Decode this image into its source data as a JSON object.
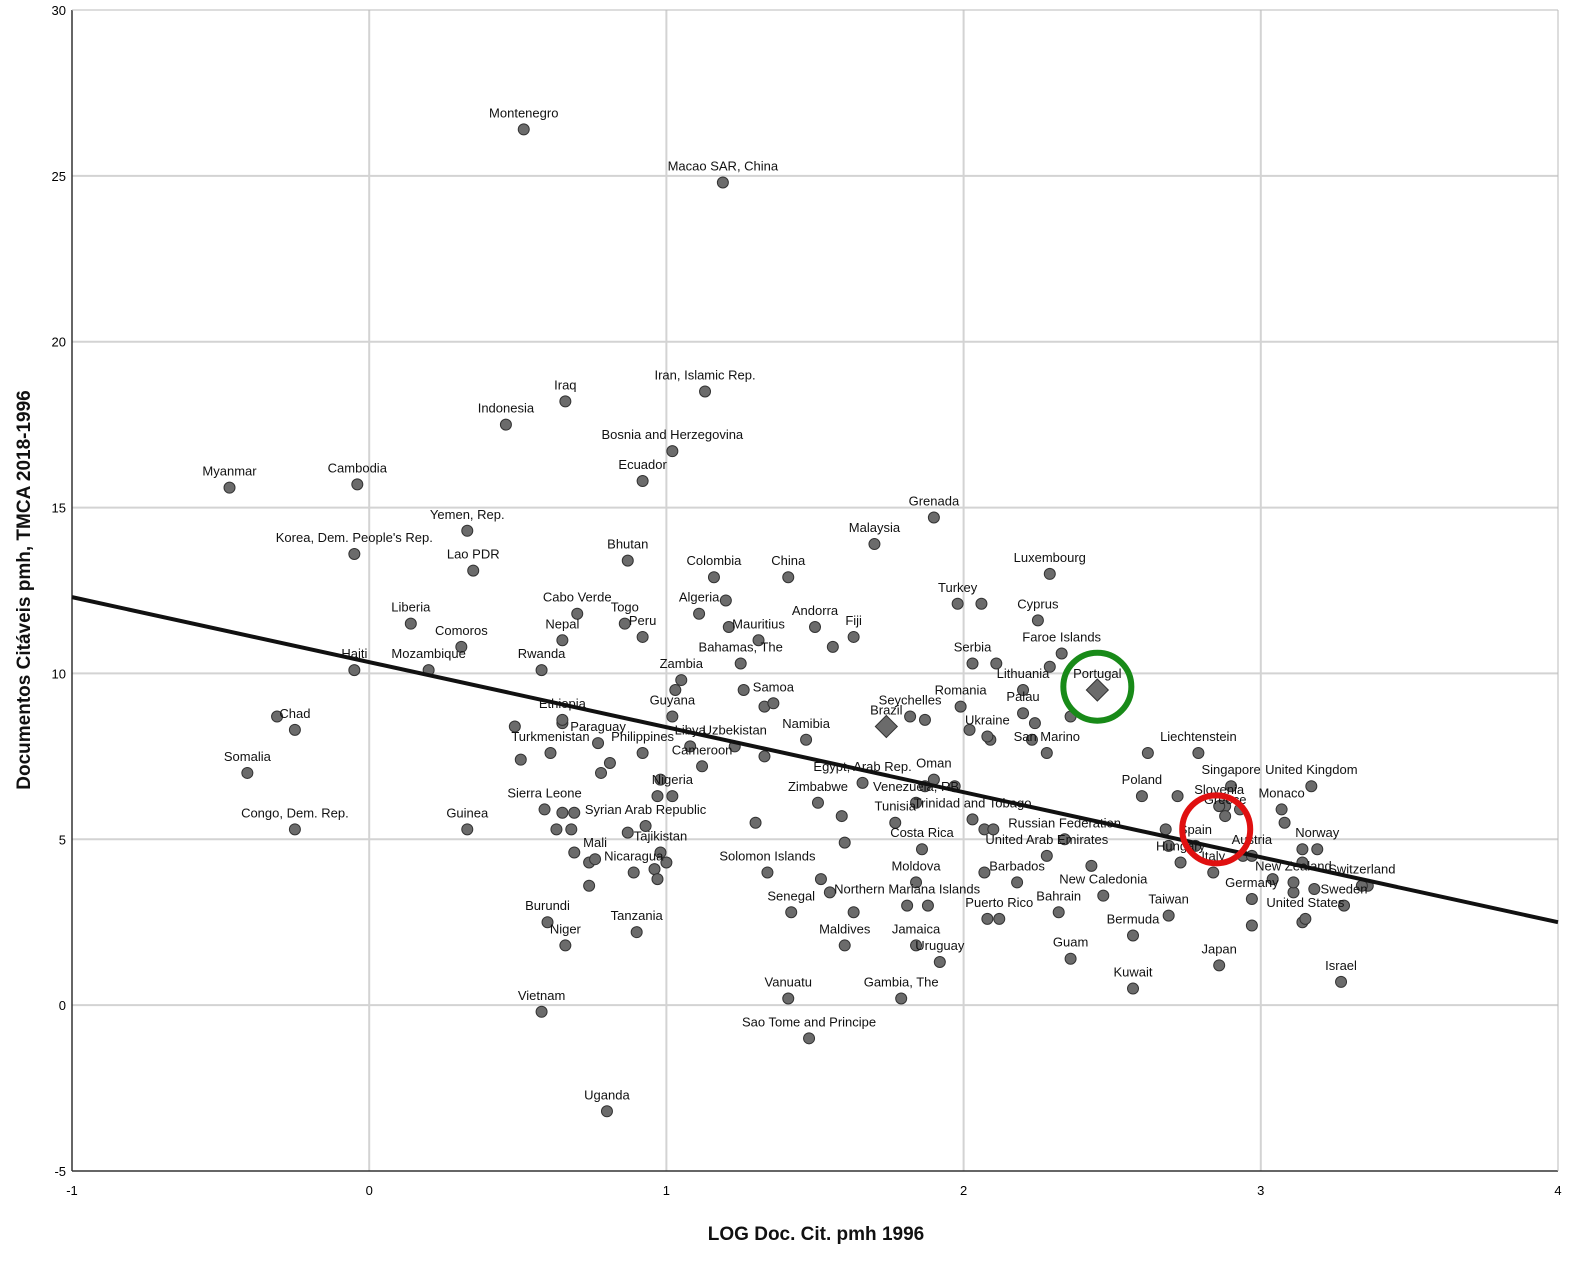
{
  "chart_data": {
    "type": "scatter",
    "xlabel": "LOG Doc. Cit. pmh 1996",
    "ylabel": "Documentos Citáveis pmh, TMCA 2018-1996",
    "xlim": [
      -1,
      4
    ],
    "ylim": [
      -5,
      30
    ],
    "xticks": [
      "-1",
      "0",
      "1",
      "2",
      "3",
      "4"
    ],
    "yticks": [
      "-5",
      "0",
      "5",
      "10",
      "15",
      "20",
      "25",
      "30"
    ],
    "grid": true,
    "colors": {
      "point": "#6b6b6b",
      "point_edge": "#333333",
      "fit_line": "#111111",
      "grid": "#d3d3d3",
      "highlight_green": "#188a18",
      "highlight_red": "#e01010"
    },
    "fit_line": {
      "x": [
        -1,
        4
      ],
      "y": [
        12.3,
        2.5
      ]
    },
    "highlights": [
      {
        "x": 2.45,
        "y": 9.6,
        "color": "green",
        "shape": "circle"
      },
      {
        "x": 2.85,
        "y": 5.3,
        "color": "red",
        "shape": "circle"
      }
    ],
    "labeled_points": [
      {
        "label": "Montenegro",
        "x": 0.52,
        "y": 26.4
      },
      {
        "label": "Macao SAR, China",
        "x": 1.19,
        "y": 24.8
      },
      {
        "label": "Iraq",
        "x": 0.66,
        "y": 18.2
      },
      {
        "label": "Indonesia",
        "x": 0.46,
        "y": 17.5
      },
      {
        "label": "Iran, Islamic Rep.",
        "x": 1.13,
        "y": 18.5
      },
      {
        "label": "Bosnia and Herzegovina",
        "x": 1.02,
        "y": 16.7
      },
      {
        "label": "Ecuador",
        "x": 0.92,
        "y": 15.8
      },
      {
        "label": "Myanmar",
        "x": -0.47,
        "y": 15.6
      },
      {
        "label": "Cambodia",
        "x": -0.04,
        "y": 15.7
      },
      {
        "label": "Yemen, Rep.",
        "x": 0.33,
        "y": 14.3
      },
      {
        "label": "Korea, Dem. People's Rep.",
        "x": -0.05,
        "y": 13.6
      },
      {
        "label": "Lao PDR",
        "x": 0.35,
        "y": 13.1
      },
      {
        "label": "Bhutan",
        "x": 0.87,
        "y": 13.4
      },
      {
        "label": "Grenada",
        "x": 1.9,
        "y": 14.7
      },
      {
        "label": "Malaysia",
        "x": 1.7,
        "y": 13.9
      },
      {
        "label": "Luxembourg",
        "x": 2.29,
        "y": 13.0
      },
      {
        "label": "China",
        "x": 1.41,
        "y": 12.9
      },
      {
        "label": "Colombia",
        "x": 1.16,
        "y": 12.9
      },
      {
        "label": "Turkey",
        "x": 1.98,
        "y": 12.1
      },
      {
        "label": "Liberia",
        "x": 0.14,
        "y": 11.5
      },
      {
        "label": "Cabo Verde",
        "x": 0.7,
        "y": 11.8
      },
      {
        "label": "Algeria",
        "x": 1.11,
        "y": 11.8
      },
      {
        "label": "Andorra",
        "x": 1.5,
        "y": 11.4
      },
      {
        "label": "Cyprus",
        "x": 2.25,
        "y": 11.6
      },
      {
        "label": "Togo",
        "x": 0.86,
        "y": 11.5
      },
      {
        "label": "Peru",
        "x": 0.92,
        "y": 11.1
      },
      {
        "label": "Nepal",
        "x": 0.65,
        "y": 11.0
      },
      {
        "label": "Comoros",
        "x": 0.31,
        "y": 10.8
      },
      {
        "label": "Mauritius",
        "x": 1.31,
        "y": 11.0
      },
      {
        "label": "Fiji",
        "x": 1.63,
        "y": 11.1
      },
      {
        "label": "Haiti",
        "x": -0.05,
        "y": 10.1
      },
      {
        "label": "Mozambique",
        "x": 0.2,
        "y": 10.1
      },
      {
        "label": "Rwanda",
        "x": 0.58,
        "y": 10.1
      },
      {
        "label": "Bahamas, The",
        "x": 1.25,
        "y": 10.3
      },
      {
        "label": "Serbia",
        "x": 2.03,
        "y": 10.3
      },
      {
        "label": "Faroe Islands",
        "x": 2.33,
        "y": 10.6
      },
      {
        "label": "Portugal",
        "x": 2.45,
        "y": 9.5
      },
      {
        "label": "Zambia",
        "x": 1.05,
        "y": 9.8
      },
      {
        "label": "Lithuania",
        "x": 2.2,
        "y": 9.5
      },
      {
        "label": "Samoa",
        "x": 1.36,
        "y": 9.1
      },
      {
        "label": "Romania",
        "x": 1.99,
        "y": 9.0
      },
      {
        "label": "Seychelles",
        "x": 1.82,
        "y": 8.7
      },
      {
        "label": "Guyana",
        "x": 1.02,
        "y": 8.7
      },
      {
        "label": "Ethiopia",
        "x": 0.65,
        "y": 8.6
      },
      {
        "label": "Palau",
        "x": 2.2,
        "y": 8.8
      },
      {
        "label": "Chad",
        "x": -0.25,
        "y": 8.3
      },
      {
        "label": "Ukraine",
        "x": 2.08,
        "y": 8.1
      },
      {
        "label": "Paraguay",
        "x": 0.77,
        "y": 7.9
      },
      {
        "label": "Libya",
        "x": 1.08,
        "y": 7.8
      },
      {
        "label": "Uzbekistan",
        "x": 1.23,
        "y": 7.8
      },
      {
        "label": "Namibia",
        "x": 1.47,
        "y": 8.0
      },
      {
        "label": "Brazil",
        "x": 1.74,
        "y": 8.4
      },
      {
        "label": "San Marino",
        "x": 2.28,
        "y": 7.6
      },
      {
        "label": "Liechtenstein",
        "x": 2.79,
        "y": 7.6
      },
      {
        "label": "Turkmenistan",
        "x": 0.61,
        "y": 7.6
      },
      {
        "label": "Philippines",
        "x": 0.92,
        "y": 7.6
      },
      {
        "label": "Cameroon",
        "x": 1.12,
        "y": 7.2
      },
      {
        "label": "Somalia",
        "x": -0.41,
        "y": 7.0
      },
      {
        "label": "Egypt, Arab Rep.",
        "x": 1.66,
        "y": 6.7
      },
      {
        "label": "Oman",
        "x": 1.9,
        "y": 6.8
      },
      {
        "label": "Venezuela, RB",
        "x": 1.84,
        "y": 6.1
      },
      {
        "label": "Singapore",
        "x": 2.9,
        "y": 6.6
      },
      {
        "label": "United Kingdom",
        "x": 3.17,
        "y": 6.6
      },
      {
        "label": "Nigeria",
        "x": 1.02,
        "y": 6.3
      },
      {
        "label": "Poland",
        "x": 2.6,
        "y": 6.3
      },
      {
        "label": "Slovenia",
        "x": 2.86,
        "y": 6.0
      },
      {
        "label": "Sierra Leone",
        "x": 0.59,
        "y": 5.9
      },
      {
        "label": "Syrian Arab Republic",
        "x": 0.93,
        "y": 5.4
      },
      {
        "label": "Zimbabwe",
        "x": 1.51,
        "y": 6.1
      },
      {
        "label": "Trinidad and Tobago",
        "x": 2.03,
        "y": 5.6
      },
      {
        "label": "Monaco",
        "x": 3.07,
        "y": 5.9
      },
      {
        "label": "Greece",
        "x": 2.88,
        "y": 5.7
      },
      {
        "label": "Congo, Dem. Rep.",
        "x": -0.25,
        "y": 5.3
      },
      {
        "label": "Guinea",
        "x": 0.33,
        "y": 5.3
      },
      {
        "label": "Tunisia",
        "x": 1.77,
        "y": 5.5
      },
      {
        "label": "Russian Federation",
        "x": 2.34,
        "y": 5.0
      },
      {
        "label": "Spain",
        "x": 2.78,
        "y": 4.8
      },
      {
        "label": "Norway",
        "x": 3.19,
        "y": 4.7
      },
      {
        "label": "Tajikistan",
        "x": 0.98,
        "y": 4.6
      },
      {
        "label": "Costa Rica",
        "x": 1.86,
        "y": 4.7
      },
      {
        "label": "Austria",
        "x": 2.97,
        "y": 4.5
      },
      {
        "label": "Mali",
        "x": 0.76,
        "y": 4.4
      },
      {
        "label": "United Arab Emirates",
        "x": 2.28,
        "y": 4.5
      },
      {
        "label": "Nicaragua",
        "x": 0.89,
        "y": 4.0
      },
      {
        "label": "Hungary",
        "x": 2.73,
        "y": 4.3
      },
      {
        "label": "Italy",
        "x": 2.84,
        "y": 4.0
      },
      {
        "label": "Solomon Islands",
        "x": 1.34,
        "y": 4.0
      },
      {
        "label": "Moldova",
        "x": 1.84,
        "y": 3.7
      },
      {
        "label": "Barbados",
        "x": 2.18,
        "y": 3.7
      },
      {
        "label": "New Zealand",
        "x": 3.11,
        "y": 3.7
      },
      {
        "label": "Switzerland",
        "x": 3.34,
        "y": 3.6
      },
      {
        "label": "New Caledonia",
        "x": 2.47,
        "y": 3.3
      },
      {
        "label": "Germany",
        "x": 2.97,
        "y": 3.2
      },
      {
        "label": "Sweden",
        "x": 3.28,
        "y": 3.0
      },
      {
        "label": "Northern Mariana Islands",
        "x": 1.81,
        "y": 3.0
      },
      {
        "label": "Senegal",
        "x": 1.42,
        "y": 2.8
      },
      {
        "label": "Puerto Rico",
        "x": 2.12,
        "y": 2.6
      },
      {
        "label": "Bahrain",
        "x": 2.32,
        "y": 2.8
      },
      {
        "label": "Taiwan",
        "x": 2.69,
        "y": 2.7
      },
      {
        "label": "United States",
        "x": 3.15,
        "y": 2.6
      },
      {
        "label": "Burundi",
        "x": 0.6,
        "y": 2.5
      },
      {
        "label": "Tanzania",
        "x": 0.9,
        "y": 2.2
      },
      {
        "label": "Maldives",
        "x": 1.6,
        "y": 1.8
      },
      {
        "label": "Jamaica",
        "x": 1.84,
        "y": 1.8
      },
      {
        "label": "Bermuda",
        "x": 2.57,
        "y": 2.1
      },
      {
        "label": "Niger",
        "x": 0.66,
        "y": 1.8
      },
      {
        "label": "Guam",
        "x": 2.36,
        "y": 1.4
      },
      {
        "label": "Uruguay",
        "x": 1.92,
        "y": 1.3
      },
      {
        "label": "Japan",
        "x": 2.86,
        "y": 1.2
      },
      {
        "label": "Israel",
        "x": 3.27,
        "y": 0.7
      },
      {
        "label": "Kuwait",
        "x": 2.57,
        "y": 0.5
      },
      {
        "label": "Vanuatu",
        "x": 1.41,
        "y": 0.2
      },
      {
        "label": "Gambia, The",
        "x": 1.79,
        "y": 0.2
      },
      {
        "label": "Vietnam",
        "x": 0.58,
        "y": -0.2
      },
      {
        "label": "Sao Tome and Principe",
        "x": 1.48,
        "y": -1.0
      },
      {
        "label": "Uganda",
        "x": 0.8,
        "y": -3.2
      }
    ],
    "unlabeled_points": [
      {
        "x": -0.31,
        "y": 8.7
      },
      {
        "x": 0.49,
        "y": 8.4
      },
      {
        "x": 0.51,
        "y": 7.4
      },
      {
        "x": 0.65,
        "y": 8.5
      },
      {
        "x": 0.78,
        "y": 7.0
      },
      {
        "x": 0.81,
        "y": 7.3
      },
      {
        "x": 0.63,
        "y": 5.3
      },
      {
        "x": 0.68,
        "y": 5.3
      },
      {
        "x": 0.69,
        "y": 4.6
      },
      {
        "x": 0.74,
        "y": 4.3
      },
      {
        "x": 0.74,
        "y": 3.6
      },
      {
        "x": 0.69,
        "y": 5.8
      },
      {
        "x": 0.65,
        "y": 5.8
      },
      {
        "x": 0.87,
        "y": 5.2
      },
      {
        "x": 0.96,
        "y": 4.1
      },
      {
        "x": 0.97,
        "y": 3.8
      },
      {
        "x": 1.0,
        "y": 4.3
      },
      {
        "x": 0.98,
        "y": 6.8
      },
      {
        "x": 0.97,
        "y": 6.3
      },
      {
        "x": 1.03,
        "y": 9.5
      },
      {
        "x": 1.2,
        "y": 12.2
      },
      {
        "x": 1.21,
        "y": 11.4
      },
      {
        "x": 1.26,
        "y": 9.5
      },
      {
        "x": 1.33,
        "y": 9.0
      },
      {
        "x": 1.33,
        "y": 7.5
      },
      {
        "x": 1.3,
        "y": 5.5
      },
      {
        "x": 1.56,
        "y": 10.8
      },
      {
        "x": 1.59,
        "y": 5.7
      },
      {
        "x": 1.6,
        "y": 4.9
      },
      {
        "x": 1.52,
        "y": 3.8
      },
      {
        "x": 1.55,
        "y": 3.4
      },
      {
        "x": 1.63,
        "y": 2.8
      },
      {
        "x": 1.87,
        "y": 8.6
      },
      {
        "x": 1.87,
        "y": 6.6
      },
      {
        "x": 1.88,
        "y": 3.0
      },
      {
        "x": 2.06,
        "y": 12.1
      },
      {
        "x": 2.11,
        "y": 10.3
      },
      {
        "x": 2.02,
        "y": 8.3
      },
      {
        "x": 2.09,
        "y": 8.0
      },
      {
        "x": 1.97,
        "y": 6.6
      },
      {
        "x": 2.07,
        "y": 5.3
      },
      {
        "x": 2.1,
        "y": 5.3
      },
      {
        "x": 2.07,
        "y": 4.0
      },
      {
        "x": 2.08,
        "y": 2.6
      },
      {
        "x": 2.29,
        "y": 10.2
      },
      {
        "x": 2.24,
        "y": 8.5
      },
      {
        "x": 2.36,
        "y": 8.7
      },
      {
        "x": 2.23,
        "y": 8.0
      },
      {
        "x": 2.43,
        "y": 4.2
      },
      {
        "x": 2.62,
        "y": 7.6
      },
      {
        "x": 2.72,
        "y": 6.3
      },
      {
        "x": 2.68,
        "y": 5.3
      },
      {
        "x": 2.69,
        "y": 4.8
      },
      {
        "x": 2.88,
        "y": 6.0
      },
      {
        "x": 2.93,
        "y": 5.9
      },
      {
        "x": 2.94,
        "y": 4.5
      },
      {
        "x": 3.08,
        "y": 5.5
      },
      {
        "x": 3.04,
        "y": 3.8
      },
      {
        "x": 3.14,
        "y": 4.7
      },
      {
        "x": 3.14,
        "y": 4.3
      },
      {
        "x": 3.11,
        "y": 3.4
      },
      {
        "x": 3.18,
        "y": 3.5
      },
      {
        "x": 2.97,
        "y": 2.4
      },
      {
        "x": 3.14,
        "y": 2.5
      },
      {
        "x": 3.36,
        "y": 3.6
      }
    ],
    "diamond_points": [
      {
        "label": "Brazil",
        "x": 1.74,
        "y": 8.4
      },
      {
        "label": "Portugal",
        "x": 2.45,
        "y": 9.5
      }
    ]
  }
}
